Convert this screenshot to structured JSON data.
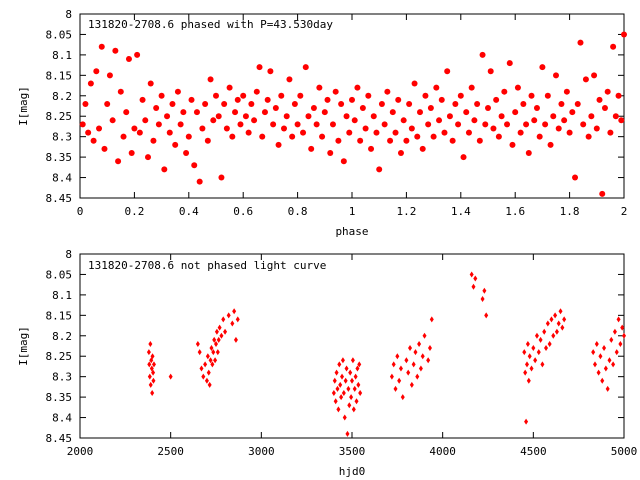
{
  "colors": {
    "points": "#ff0000",
    "axes": "#000000",
    "background": "#ffffff"
  },
  "chart_data": [
    {
      "type": "scatter",
      "title": "131820-2708.6 phased with P=43.530day",
      "xlabel": "phase",
      "ylabel": "I[mag]",
      "xlim": [
        0,
        2
      ],
      "ylim": [
        8.45,
        8.0
      ],
      "y_inverted": true,
      "xticks": [
        "0",
        "0.2",
        "0.4",
        "0.6",
        "0.8",
        "1",
        "1.2",
        "1.4",
        "1.6",
        "1.8",
        "2"
      ],
      "yticks": [
        "8",
        "8.05",
        "8.1",
        "8.15",
        "8.2",
        "8.25",
        "8.3",
        "8.35",
        "8.4",
        "8.45"
      ],
      "grid": false,
      "marker": "filled-circle",
      "points": [
        [
          0.01,
          8.27
        ],
        [
          0.02,
          8.22
        ],
        [
          0.03,
          8.29
        ],
        [
          0.04,
          8.17
        ],
        [
          0.05,
          8.31
        ],
        [
          0.06,
          8.14
        ],
        [
          0.07,
          8.28
        ],
        [
          0.08,
          8.08
        ],
        [
          0.09,
          8.33
        ],
        [
          0.1,
          8.22
        ],
        [
          0.11,
          8.15
        ],
        [
          0.12,
          8.26
        ],
        [
          0.13,
          8.09
        ],
        [
          0.14,
          8.36
        ],
        [
          0.15,
          8.19
        ],
        [
          0.16,
          8.3
        ],
        [
          0.17,
          8.24
        ],
        [
          0.18,
          8.11
        ],
        [
          0.19,
          8.34
        ],
        [
          0.2,
          8.28
        ],
        [
          0.21,
          8.1
        ],
        [
          0.22,
          8.29
        ],
        [
          0.23,
          8.21
        ],
        [
          0.24,
          8.26
        ],
        [
          0.25,
          8.35
        ],
        [
          0.26,
          8.17
        ],
        [
          0.27,
          8.31
        ],
        [
          0.28,
          8.23
        ],
        [
          0.29,
          8.27
        ],
        [
          0.3,
          8.2
        ],
        [
          0.31,
          8.38
        ],
        [
          0.32,
          8.25
        ],
        [
          0.33,
          8.29
        ],
        [
          0.34,
          8.22
        ],
        [
          0.35,
          8.32
        ],
        [
          0.36,
          8.19
        ],
        [
          0.37,
          8.27
        ],
        [
          0.38,
          8.24
        ],
        [
          0.39,
          8.34
        ],
        [
          0.4,
          8.3
        ],
        [
          0.41,
          8.21
        ],
        [
          0.42,
          8.37
        ],
        [
          0.43,
          8.24
        ],
        [
          0.44,
          8.41
        ],
        [
          0.45,
          8.28
        ],
        [
          0.46,
          8.22
        ],
        [
          0.47,
          8.31
        ],
        [
          0.48,
          8.16
        ],
        [
          0.49,
          8.26
        ],
        [
          0.5,
          8.2
        ],
        [
          0.51,
          8.25
        ],
        [
          0.52,
          8.4
        ],
        [
          0.53,
          8.22
        ],
        [
          0.54,
          8.28
        ],
        [
          0.55,
          8.18
        ],
        [
          0.56,
          8.3
        ],
        [
          0.57,
          8.24
        ],
        [
          0.58,
          8.21
        ],
        [
          0.59,
          8.27
        ],
        [
          0.6,
          8.2
        ],
        [
          0.61,
          8.25
        ],
        [
          0.62,
          8.29
        ],
        [
          0.63,
          8.22
        ],
        [
          0.64,
          8.26
        ],
        [
          0.65,
          8.19
        ],
        [
          0.66,
          8.13
        ],
        [
          0.67,
          8.3
        ],
        [
          0.68,
          8.24
        ],
        [
          0.69,
          8.21
        ],
        [
          0.7,
          8.14
        ],
        [
          0.71,
          8.27
        ],
        [
          0.72,
          8.23
        ],
        [
          0.73,
          8.32
        ],
        [
          0.74,
          8.2
        ],
        [
          0.75,
          8.28
        ],
        [
          0.76,
          8.25
        ],
        [
          0.77,
          8.16
        ],
        [
          0.78,
          8.3
        ],
        [
          0.79,
          8.22
        ],
        [
          0.8,
          8.27
        ],
        [
          0.81,
          8.2
        ],
        [
          0.82,
          8.29
        ],
        [
          0.83,
          8.13
        ],
        [
          0.84,
          8.25
        ],
        [
          0.85,
          8.33
        ],
        [
          0.86,
          8.23
        ],
        [
          0.87,
          8.27
        ],
        [
          0.88,
          8.18
        ],
        [
          0.89,
          8.3
        ],
        [
          0.9,
          8.24
        ],
        [
          0.91,
          8.21
        ],
        [
          0.92,
          8.34
        ],
        [
          0.93,
          8.27
        ],
        [
          0.94,
          8.19
        ],
        [
          0.95,
          8.31
        ],
        [
          0.96,
          8.22
        ],
        [
          0.97,
          8.36
        ],
        [
          0.98,
          8.25
        ],
        [
          0.99,
          8.29
        ],
        [
          1.0,
          8.21
        ],
        [
          1.01,
          8.26
        ],
        [
          1.02,
          8.18
        ],
        [
          1.03,
          8.31
        ],
        [
          1.04,
          8.23
        ],
        [
          1.05,
          8.28
        ],
        [
          1.06,
          8.2
        ],
        [
          1.07,
          8.33
        ],
        [
          1.08,
          8.25
        ],
        [
          1.09,
          8.29
        ],
        [
          1.1,
          8.38
        ],
        [
          1.11,
          8.22
        ],
        [
          1.12,
          8.27
        ],
        [
          1.13,
          8.19
        ],
        [
          1.14,
          8.31
        ],
        [
          1.15,
          8.24
        ],
        [
          1.16,
          8.29
        ],
        [
          1.17,
          8.21
        ],
        [
          1.18,
          8.34
        ],
        [
          1.19,
          8.26
        ],
        [
          1.2,
          8.31
        ],
        [
          1.21,
          8.22
        ],
        [
          1.22,
          8.28
        ],
        [
          1.23,
          8.17
        ],
        [
          1.24,
          8.3
        ],
        [
          1.25,
          8.24
        ],
        [
          1.26,
          8.33
        ],
        [
          1.27,
          8.2
        ],
        [
          1.28,
          8.27
        ],
        [
          1.29,
          8.23
        ],
        [
          1.3,
          8.3
        ],
        [
          1.31,
          8.18
        ],
        [
          1.32,
          8.26
        ],
        [
          1.33,
          8.21
        ],
        [
          1.34,
          8.29
        ],
        [
          1.35,
          8.14
        ],
        [
          1.36,
          8.25
        ],
        [
          1.37,
          8.31
        ],
        [
          1.38,
          8.22
        ],
        [
          1.39,
          8.27
        ],
        [
          1.4,
          8.2
        ],
        [
          1.41,
          8.35
        ],
        [
          1.42,
          8.24
        ],
        [
          1.43,
          8.29
        ],
        [
          1.44,
          8.18
        ],
        [
          1.45,
          8.26
        ],
        [
          1.46,
          8.22
        ],
        [
          1.47,
          8.31
        ],
        [
          1.48,
          8.1
        ],
        [
          1.49,
          8.27
        ],
        [
          1.5,
          8.23
        ],
        [
          1.51,
          8.14
        ],
        [
          1.52,
          8.28
        ],
        [
          1.53,
          8.21
        ],
        [
          1.54,
          8.3
        ],
        [
          1.55,
          8.25
        ],
        [
          1.56,
          8.19
        ],
        [
          1.57,
          8.27
        ],
        [
          1.58,
          8.12
        ],
        [
          1.59,
          8.32
        ],
        [
          1.6,
          8.24
        ],
        [
          1.61,
          8.18
        ],
        [
          1.62,
          8.29
        ],
        [
          1.63,
          8.22
        ],
        [
          1.64,
          8.27
        ],
        [
          1.65,
          8.34
        ],
        [
          1.66,
          8.2
        ],
        [
          1.67,
          8.26
        ],
        [
          1.68,
          8.23
        ],
        [
          1.69,
          8.3
        ],
        [
          1.7,
          8.13
        ],
        [
          1.71,
          8.27
        ],
        [
          1.72,
          8.2
        ],
        [
          1.73,
          8.32
        ],
        [
          1.74,
          8.25
        ],
        [
          1.75,
          8.15
        ],
        [
          1.76,
          8.28
        ],
        [
          1.77,
          8.22
        ],
        [
          1.78,
          8.26
        ],
        [
          1.79,
          8.19
        ],
        [
          1.8,
          8.29
        ],
        [
          1.81,
          8.24
        ],
        [
          1.82,
          8.4
        ],
        [
          1.83,
          8.22
        ],
        [
          1.84,
          8.07
        ],
        [
          1.85,
          8.27
        ],
        [
          1.86,
          8.16
        ],
        [
          1.87,
          8.3
        ],
        [
          1.88,
          8.25
        ],
        [
          1.89,
          8.15
        ],
        [
          1.9,
          8.28
        ],
        [
          1.91,
          8.21
        ],
        [
          1.92,
          8.44
        ],
        [
          1.93,
          8.23
        ],
        [
          1.94,
          8.19
        ],
        [
          1.95,
          8.29
        ],
        [
          1.96,
          8.08
        ],
        [
          1.97,
          8.25
        ],
        [
          1.98,
          8.2
        ],
        [
          1.99,
          8.26
        ],
        [
          2.0,
          8.05
        ]
      ]
    },
    {
      "type": "scatter",
      "title": "131820-2708.6 not phased light curve",
      "xlabel": "hjd0",
      "ylabel": "I[mag]",
      "xlim": [
        2000,
        5000
      ],
      "ylim": [
        8.45,
        8.0
      ],
      "y_inverted": true,
      "xticks": [
        "2000",
        "2500",
        "3000",
        "3500",
        "4000",
        "4500",
        "5000"
      ],
      "yticks": [
        "8",
        "8.05",
        "8.1",
        "8.15",
        "8.2",
        "8.25",
        "8.3",
        "8.35",
        "8.4",
        "8.45"
      ],
      "grid": false,
      "marker": "filled-diamond",
      "points": [
        [
          2380,
          8.24
        ],
        [
          2382,
          8.27
        ],
        [
          2385,
          8.3
        ],
        [
          2388,
          8.22
        ],
        [
          2390,
          8.32
        ],
        [
          2393,
          8.26
        ],
        [
          2396,
          8.28
        ],
        [
          2398,
          8.34
        ],
        [
          2400,
          8.25
        ],
        [
          2403,
          8.29
        ],
        [
          2405,
          8.31
        ],
        [
          2408,
          8.27
        ],
        [
          2500,
          8.3
        ],
        [
          2650,
          8.22
        ],
        [
          2660,
          8.24
        ],
        [
          2670,
          8.28
        ],
        [
          2680,
          8.3
        ],
        [
          2690,
          8.27
        ],
        [
          2700,
          8.31
        ],
        [
          2705,
          8.25
        ],
        [
          2710,
          8.29
        ],
        [
          2715,
          8.32
        ],
        [
          2720,
          8.26
        ],
        [
          2725,
          8.23
        ],
        [
          2730,
          8.27
        ],
        [
          2735,
          8.24
        ],
        [
          2740,
          8.21
        ],
        [
          2745,
          8.26
        ],
        [
          2750,
          8.22
        ],
        [
          2755,
          8.19
        ],
        [
          2760,
          8.24
        ],
        [
          2765,
          8.21
        ],
        [
          2770,
          8.18
        ],
        [
          2780,
          8.2
        ],
        [
          2790,
          8.16
        ],
        [
          2800,
          8.19
        ],
        [
          2820,
          8.15
        ],
        [
          2840,
          8.17
        ],
        [
          2850,
          8.14
        ],
        [
          2860,
          8.21
        ],
        [
          2870,
          8.16
        ],
        [
          3400,
          8.34
        ],
        [
          3405,
          8.31
        ],
        [
          3410,
          8.36
        ],
        [
          3415,
          8.29
        ],
        [
          3420,
          8.33
        ],
        [
          3425,
          8.38
        ],
        [
          3430,
          8.27
        ],
        [
          3435,
          8.32
        ],
        [
          3440,
          8.35
        ],
        [
          3445,
          8.3
        ],
        [
          3450,
          8.26
        ],
        [
          3455,
          8.34
        ],
        [
          3460,
          8.4
        ],
        [
          3465,
          8.31
        ],
        [
          3470,
          8.28
        ],
        [
          3475,
          8.44
        ],
        [
          3480,
          8.33
        ],
        [
          3485,
          8.37
        ],
        [
          3490,
          8.29
        ],
        [
          3495,
          8.35
        ],
        [
          3500,
          8.31
        ],
        [
          3505,
          8.26
        ],
        [
          3510,
          8.38
        ],
        [
          3515,
          8.33
        ],
        [
          3520,
          8.3
        ],
        [
          3525,
          8.36
        ],
        [
          3530,
          8.28
        ],
        [
          3535,
          8.32
        ],
        [
          3540,
          8.27
        ],
        [
          3545,
          8.34
        ],
        [
          3720,
          8.3
        ],
        [
          3730,
          8.27
        ],
        [
          3740,
          8.33
        ],
        [
          3750,
          8.25
        ],
        [
          3760,
          8.31
        ],
        [
          3770,
          8.28
        ],
        [
          3780,
          8.35
        ],
        [
          3800,
          8.26
        ],
        [
          3810,
          8.29
        ],
        [
          3820,
          8.23
        ],
        [
          3830,
          8.32
        ],
        [
          3840,
          8.27
        ],
        [
          3850,
          8.24
        ],
        [
          3860,
          8.3
        ],
        [
          3870,
          8.22
        ],
        [
          3880,
          8.28
        ],
        [
          3890,
          8.25
        ],
        [
          3900,
          8.2
        ],
        [
          3920,
          8.26
        ],
        [
          3930,
          8.23
        ],
        [
          3940,
          8.16
        ],
        [
          4160,
          8.05
        ],
        [
          4170,
          8.08
        ],
        [
          4180,
          8.06
        ],
        [
          4220,
          8.11
        ],
        [
          4230,
          8.09
        ],
        [
          4240,
          8.15
        ],
        [
          4450,
          8.24
        ],
        [
          4455,
          8.29
        ],
        [
          4460,
          8.41
        ],
        [
          4465,
          8.27
        ],
        [
          4470,
          8.22
        ],
        [
          4475,
          8.31
        ],
        [
          4480,
          8.25
        ],
        [
          4490,
          8.28
        ],
        [
          4500,
          8.23
        ],
        [
          4510,
          8.26
        ],
        [
          4520,
          8.2
        ],
        [
          4530,
          8.24
        ],
        [
          4540,
          8.21
        ],
        [
          4550,
          8.27
        ],
        [
          4560,
          8.19
        ],
        [
          4570,
          8.23
        ],
        [
          4580,
          8.17
        ],
        [
          4590,
          8.22
        ],
        [
          4600,
          8.16
        ],
        [
          4610,
          8.2
        ],
        [
          4620,
          8.15
        ],
        [
          4630,
          8.19
        ],
        [
          4640,
          8.17
        ],
        [
          4650,
          8.14
        ],
        [
          4660,
          8.18
        ],
        [
          4670,
          8.16
        ],
        [
          4830,
          8.24
        ],
        [
          4840,
          8.27
        ],
        [
          4850,
          8.22
        ],
        [
          4860,
          8.29
        ],
        [
          4870,
          8.25
        ],
        [
          4880,
          8.31
        ],
        [
          4890,
          8.23
        ],
        [
          4900,
          8.28
        ],
        [
          4910,
          8.33
        ],
        [
          4920,
          8.26
        ],
        [
          4930,
          8.21
        ],
        [
          4940,
          8.27
        ],
        [
          4950,
          8.19
        ],
        [
          4960,
          8.24
        ],
        [
          4970,
          8.16
        ],
        [
          4980,
          8.22
        ],
        [
          4990,
          8.18
        ],
        [
          5000,
          8.2
        ]
      ]
    }
  ]
}
